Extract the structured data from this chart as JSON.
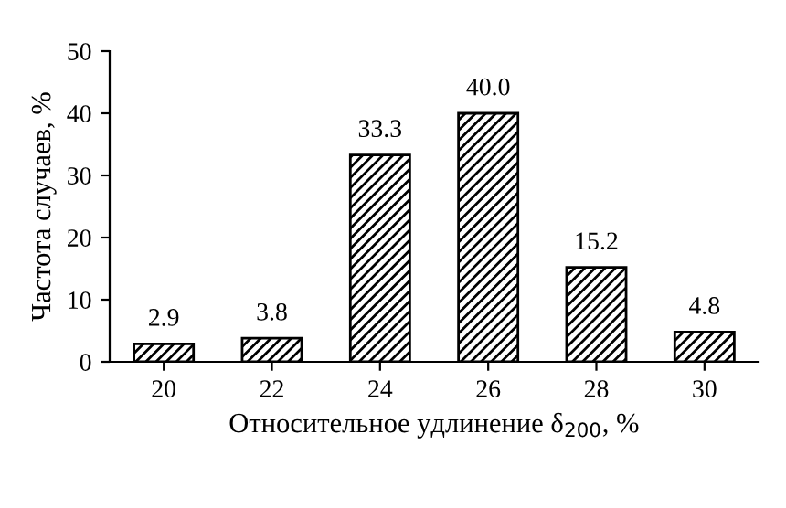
{
  "chart_data": {
    "type": "bar",
    "xlabel": "Относительное удлинение δ$_{200}$, %",
    "ylabel": "Частота случаев, %",
    "categories": [
      "20",
      "22",
      "24",
      "26",
      "28",
      "30"
    ],
    "values": [
      2.9,
      3.8,
      33.3,
      40.0,
      15.2,
      4.8
    ],
    "value_labels": [
      "2.9",
      "3.8",
      "33.3",
      "40.0",
      "15.2",
      "4.8"
    ],
    "color": "#000000",
    "ylim": [
      0,
      50
    ],
    "yticks": [
      0,
      10,
      20,
      30,
      40,
      50
    ],
    "grid": false
  }
}
